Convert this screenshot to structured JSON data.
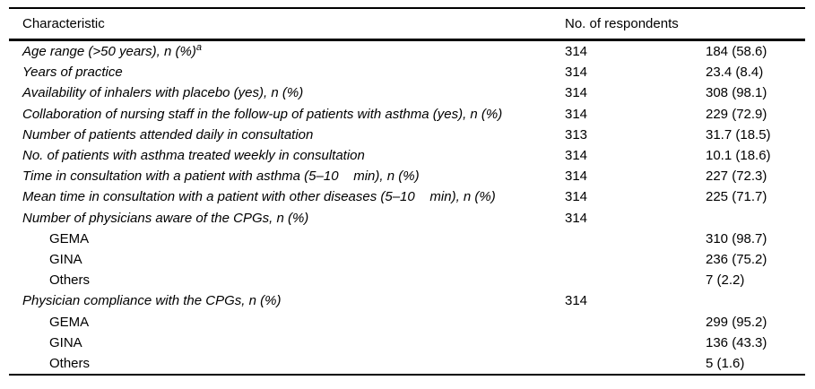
{
  "table": {
    "header": {
      "characteristic": "Characteristic",
      "respondents": "No. of respondents"
    },
    "rows": [
      {
        "label": "Age range (>50 years), n (%)",
        "label_sup": "a",
        "respondents": "314",
        "value": "184 (58.6)"
      },
      {
        "label": "Years of practice",
        "respondents": "314",
        "value": "23.4 (8.4)"
      },
      {
        "label": "Availability of inhalers with placebo (yes), n (%)",
        "respondents": "314",
        "value": "308 (98.1)"
      },
      {
        "label": "Collaboration of nursing staff in the follow-up of patients with asthma (yes), n (%)",
        "respondents": "314",
        "value": "229 (72.9)"
      },
      {
        "label": "Number of patients attended daily in consultation",
        "respondents": "313",
        "value": "31.7 (18.5)"
      },
      {
        "label": "No. of patients with asthma treated weekly in consultation",
        "respondents": "314",
        "value": "10.1 (18.6)"
      },
      {
        "label": "Time in consultation with a patient with asthma (5–10    min), n (%)",
        "respondents": "314",
        "value": "227 (72.3)"
      },
      {
        "label": "Mean time in consultation with a patient with other diseases (5–10    min), n (%)",
        "respondents": "314",
        "value": "225 (71.7)"
      },
      {
        "label": "Number of physicians aware of the CPGs, n (%)",
        "respondents": "314",
        "value": ""
      },
      {
        "label": "GEMA",
        "respondents": "",
        "value": "310 (98.7)"
      },
      {
        "label": "GINA",
        "respondents": "",
        "value": "236 (75.2)"
      },
      {
        "label": "Others",
        "respondents": "",
        "value": "7 (2.2)"
      },
      {
        "label": "Physician compliance with the CPGs, n (%)",
        "respondents": "314",
        "value": ""
      },
      {
        "label": "GEMA",
        "respondents": "",
        "value": "299 (95.2)"
      },
      {
        "label": "GINA",
        "respondents": "",
        "value": "136 (43.3)"
      },
      {
        "label": "Others",
        "respondents": "",
        "value": "5 (1.6)"
      }
    ]
  }
}
